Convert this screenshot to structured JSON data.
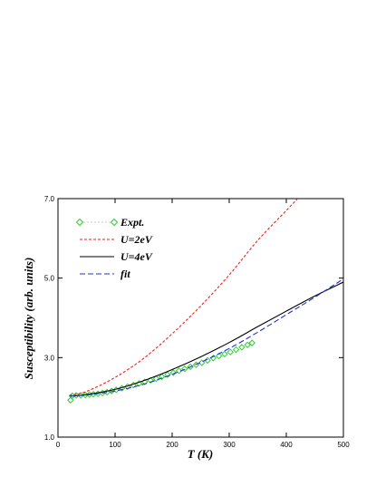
{
  "chart_data": {
    "type": "line",
    "xlabel": "T (K)",
    "ylabel": "Susceptibility (arb. units)",
    "xlim": [
      0,
      500
    ],
    "ylim": [
      1.0,
      7.0
    ],
    "xticks": [
      0,
      100,
      200,
      300,
      400,
      500
    ],
    "yticks": [
      1.0,
      3.0,
      5.0,
      7.0
    ],
    "ytick_labels": [
      "1.0",
      "3.0",
      "5.0",
      "7.0"
    ],
    "grid": false,
    "legend_position": "top-left",
    "series": [
      {
        "name": "Expt.",
        "style": "markers",
        "color": "#33cc33",
        "x": [
          22,
          25,
          32,
          40,
          48,
          55,
          62,
          70,
          78,
          86,
          94,
          102,
          112,
          122,
          132,
          142,
          152,
          162,
          172,
          182,
          192,
          202,
          212,
          222,
          232,
          242,
          252,
          262,
          272,
          282,
          292,
          302,
          312,
          322,
          332,
          340
        ],
        "y": [
          1.93,
          2.04,
          2.05,
          2.05,
          2.06,
          2.07,
          2.08,
          2.09,
          2.11,
          2.13,
          2.16,
          2.19,
          2.23,
          2.27,
          2.31,
          2.35,
          2.39,
          2.43,
          2.47,
          2.52,
          2.57,
          2.62,
          2.67,
          2.72,
          2.77,
          2.82,
          2.87,
          2.93,
          2.99,
          3.04,
          3.09,
          3.14,
          3.2,
          3.26,
          3.32,
          3.37
        ]
      },
      {
        "name": "U=2eV",
        "style": "dashed",
        "color": "#ee2222",
        "x": [
          20,
          50,
          100,
          150,
          200,
          250,
          300,
          350,
          400,
          420
        ],
        "y": [
          2.05,
          2.15,
          2.5,
          2.98,
          3.6,
          4.3,
          5.08,
          5.95,
          6.7,
          7.0
        ]
      },
      {
        "name": "U=4eV",
        "style": "solid",
        "color": "#000000",
        "x": [
          20,
          50,
          100,
          150,
          200,
          250,
          300,
          350,
          400,
          450,
          500
        ],
        "y": [
          2.03,
          2.07,
          2.2,
          2.42,
          2.7,
          3.02,
          3.38,
          3.78,
          4.17,
          4.55,
          4.9
        ]
      },
      {
        "name": "fit",
        "style": "dashed",
        "color": "#2233cc",
        "x": [
          20,
          50,
          100,
          150,
          200,
          250,
          300,
          350,
          400,
          450,
          500
        ],
        "y": [
          2.03,
          2.06,
          2.16,
          2.33,
          2.58,
          2.88,
          3.23,
          3.64,
          4.08,
          4.52,
          4.98
        ]
      }
    ]
  }
}
